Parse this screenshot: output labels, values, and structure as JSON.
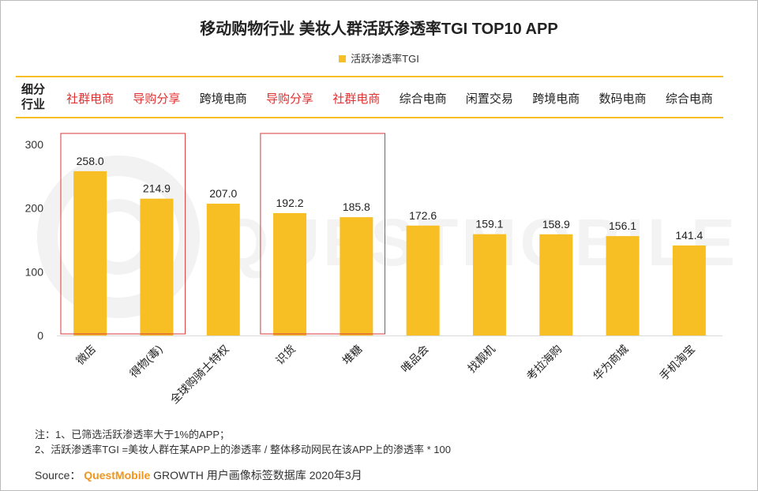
{
  "title": "移动购物行业 美妆人群活跃渗透率TGI TOP10 APP",
  "legend": "活跃渗透率TGI",
  "industry_label": "细分行业",
  "watermark": "QUESTMOBILE",
  "chart_data": {
    "type": "bar",
    "title": "移动购物行业 美妆人群活跃渗透率TGI TOP10 APP",
    "categories": [
      "微店",
      "得物(毒)",
      "全球购骑士特权",
      "识货",
      "堆糖",
      "唯品会",
      "找靓机",
      "考拉海购",
      "华为商城",
      "手机淘宝"
    ],
    "industries": [
      "社群电商",
      "导购分享",
      "跨境电商",
      "导购分享",
      "社群电商",
      "综合电商",
      "闲置交易",
      "跨境电商",
      "数码电商",
      "综合电商"
    ],
    "highlight_industries": [
      "社群电商",
      "导购分享"
    ],
    "series": [
      {
        "name": "活跃渗透率TGI",
        "values": [
          258.0,
          214.9,
          207.0,
          192.2,
          185.8,
          172.6,
          159.1,
          158.9,
          156.1,
          141.4
        ]
      }
    ],
    "value_labels": [
      "258.0",
      "214.9",
      "207.0",
      "192.2",
      "185.8",
      "172.6",
      "159.1",
      "158.9",
      "156.1",
      "141.4"
    ],
    "yticks": [
      0,
      100,
      200,
      300
    ],
    "ylim": [
      0,
      300
    ],
    "highlight_groups": [
      [
        0,
        1
      ],
      [
        3,
        4
      ]
    ],
    "colors": {
      "bar": "#F8BF24",
      "highlight_text": "#E03030",
      "box": "#D93A3A"
    }
  },
  "notes": {
    "line1": "注：1、已筛选活跃渗透率大于1%的APP；",
    "line2": "2、活跃渗透率TGI =美妆人群在某APP上的渗透率 / 整体移动网民在该APP上的渗透率 * 100"
  },
  "source": {
    "prefix": "Source：",
    "brand": "QuestMobile",
    "suffix": " GROWTH 用户画像标签数据库 2020年3月"
  }
}
